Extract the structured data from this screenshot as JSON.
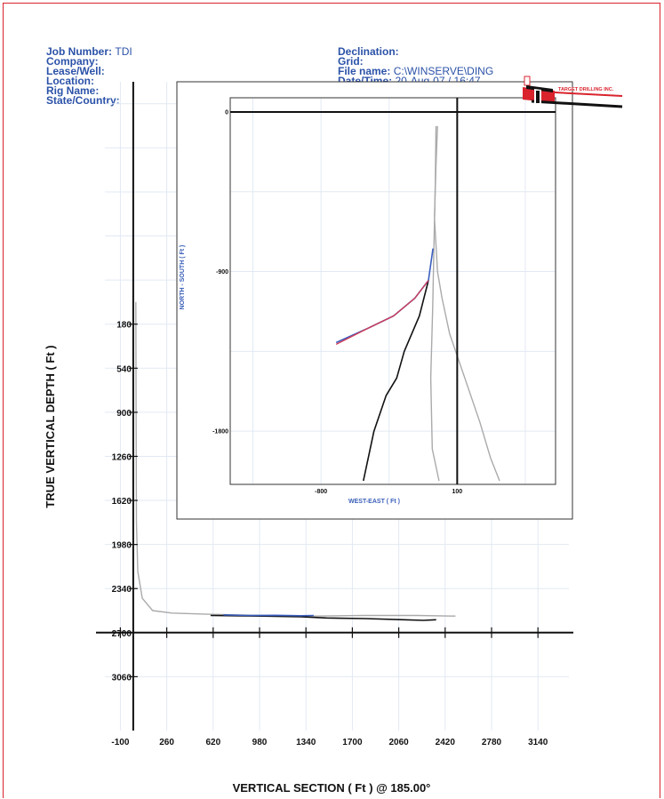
{
  "header": {
    "left": [
      {
        "label": "Job Number:",
        "value": "TDI"
      },
      {
        "label": "Company:",
        "value": ""
      },
      {
        "label": "Lease/Well:",
        "value": ""
      },
      {
        "label": "Location:",
        "value": ""
      },
      {
        "label": "Rig Name:",
        "value": ""
      },
      {
        "label": "State/Country:",
        "value": ""
      }
    ],
    "right": [
      {
        "label": "Declination:",
        "value": ""
      },
      {
        "label": "Grid:",
        "value": ""
      },
      {
        "label": "File name:",
        "value": "C:\\WINSERVE\\DING"
      },
      {
        "label": "Date/Time:",
        "value": "20-Aug-07 / 16:47"
      }
    ]
  },
  "logo": {
    "letters": "TDI",
    "name": "TARGET DRILLING INC."
  },
  "colors": {
    "header_text": "#2b52a8",
    "frame": "#d9232d",
    "grid": "#e2e9f3",
    "plan": "#111111",
    "actual": "#aaaaaa",
    "survey": "#3b5fbf",
    "projection": "#d23a55"
  },
  "chart_data": [
    {
      "type": "line",
      "name": "vertical-section",
      "xlabel": "VERTICAL SECTION ( Ft ) @ 185.00°",
      "ylabel": "TRUE VERTICAL DEPTH ( Ft )",
      "x_ticks": [
        -100,
        260,
        620,
        980,
        1340,
        1700,
        2060,
        2420,
        2780,
        3140
      ],
      "y_ticks": [
        180,
        540,
        900,
        1260,
        1620,
        1980,
        2340,
        2700,
        3060
      ],
      "xlim": [
        -220,
        3380
      ],
      "ylim": [
        -1800,
        3500
      ],
      "y_inverted": true,
      "grid": true,
      "axis_lines": {
        "x_zero": 0,
        "y_zero": 2700
      },
      "series": [
        {
          "role": "actual",
          "x": [
            20,
            22,
            25,
            35,
            70,
            150,
            300,
            600,
            1000,
            1400,
            1800,
            2200,
            2500
          ],
          "y": [
            0,
            900,
            1800,
            2200,
            2420,
            2520,
            2540,
            2550,
            2560,
            2565,
            2560,
            2560,
            2565
          ]
        },
        {
          "role": "plan",
          "x": [
            600,
            1000,
            1300,
            1500,
            1800,
            2100,
            2250,
            2350
          ],
          "y": [
            2560,
            2565,
            2570,
            2580,
            2585,
            2595,
            2600,
            2595
          ]
        },
        {
          "role": "survey",
          "x": [
            700,
            900,
            1100,
            1300,
            1400
          ],
          "y": [
            2555,
            2560,
            2558,
            2562,
            2560
          ]
        }
      ]
    },
    {
      "type": "line",
      "name": "plan-view",
      "xlabel": "WEST-EAST ( Ft )",
      "ylabel": "NORTH - SOUTH ( Ft )",
      "x_ticks": [
        -800,
        100
      ],
      "y_ticks": [
        0,
        -900,
        -1800
      ],
      "xlim": [
        -1400,
        750
      ],
      "ylim": [
        -2100,
        80
      ],
      "grid": true,
      "axis_lines": {
        "x_zero": 100,
        "y_zero": 0
      },
      "series": [
        {
          "role": "actual",
          "x": [
            -30,
            -40,
            -50,
            -30,
            0,
            50,
            150,
            250,
            320,
            380
          ],
          "y": [
            -80,
            -300,
            -600,
            -900,
            -1050,
            -1250,
            -1500,
            -1750,
            -1950,
            -2080
          ]
        },
        {
          "role": "actual",
          "x": [
            -40,
            -45,
            -55,
            -62,
            -75,
            -65,
            -20
          ],
          "y": [
            -80,
            -400,
            -800,
            -1100,
            -1500,
            -1900,
            -2080
          ]
        },
        {
          "role": "plan",
          "x": [
            -90,
            -150,
            -250,
            -300,
            -370,
            -450,
            -520
          ],
          "y": [
            -950,
            -1150,
            -1350,
            -1500,
            -1600,
            -1800,
            -2080
          ]
        },
        {
          "role": "survey",
          "x": [
            -60,
            -90,
            -180,
            -320,
            -490,
            -700
          ],
          "y": [
            -770,
            -950,
            -1050,
            -1150,
            -1220,
            -1300
          ]
        },
        {
          "role": "projection",
          "x": [
            -90,
            -180,
            -320,
            -490,
            -700
          ],
          "y": [
            -950,
            -1050,
            -1150,
            -1220,
            -1310
          ]
        }
      ]
    }
  ]
}
